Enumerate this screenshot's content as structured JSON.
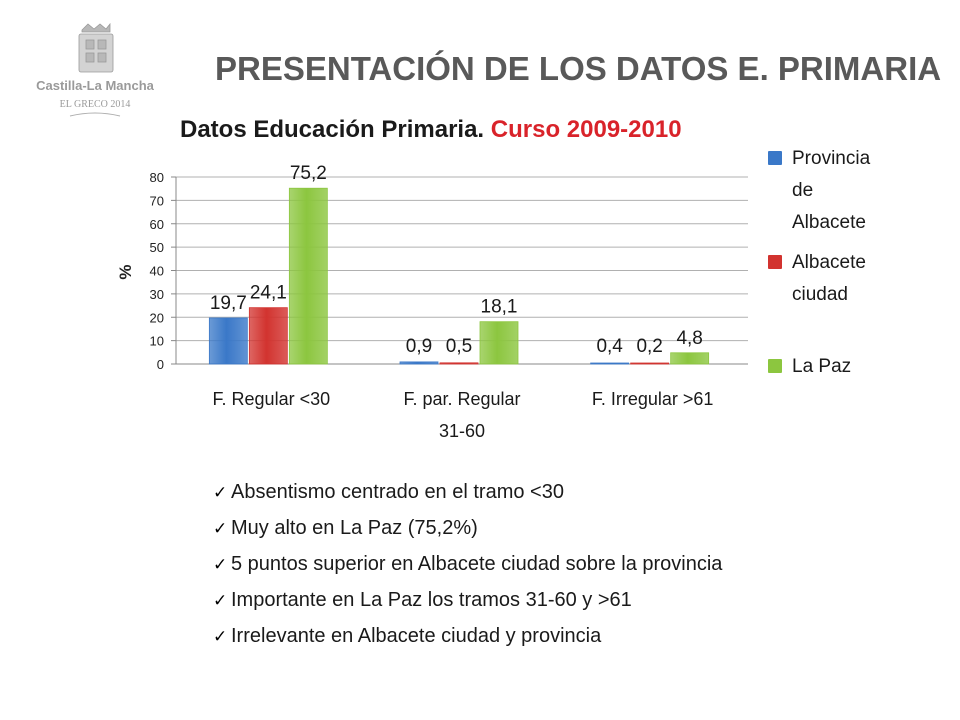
{
  "slide_title": "PRESENTACIÓN DE LOS DATOS E. PRIMARIA",
  "logo": {
    "line1": "Castilla-La Mancha",
    "line2": "EL GRECO 2014",
    "icon": "coat-of-arms"
  },
  "chart_data": {
    "type": "bar",
    "title": "Datos Educación Primaria.",
    "subtitle": "Curso 2009-2010",
    "xlabel": "",
    "ylabel": "%",
    "ylim": [
      0,
      80
    ],
    "yticks": [
      0,
      10,
      20,
      30,
      40,
      50,
      60,
      70,
      80
    ],
    "grid": true,
    "legend_position": "right",
    "categories": [
      [
        "F. Regular <30"
      ],
      [
        "F. par. Regular",
        "31-60"
      ],
      [
        "F. Irregular >61"
      ]
    ],
    "series": [
      {
        "name": "Provincia de Albacete",
        "legend_lines": [
          "Provincia",
          "de",
          "Albacete"
        ],
        "color": "#3a78c8",
        "values": [
          19.7,
          0.9,
          0.4
        ],
        "labels": [
          "19,7",
          "0,9",
          "0,4"
        ]
      },
      {
        "name": "Albacete ciudad",
        "legend_lines": [
          "Albacete",
          "ciudad"
        ],
        "color": "#d2332f",
        "values": [
          24.1,
          0.5,
          0.2
        ],
        "labels": [
          "24,1",
          "0,5",
          "0,2"
        ]
      },
      {
        "name": "La Paz",
        "legend_lines": [
          "La Paz"
        ],
        "color": "#8cc63f",
        "values": [
          75.2,
          18.1,
          4.8
        ],
        "labels": [
          "75,2",
          "18,1",
          "4,8"
        ]
      }
    ]
  },
  "bullets": [
    "Absentismo centrado en el tramo <30",
    "Muy alto en La Paz (75,2%)",
    "5 puntos superior en Albacete ciudad sobre la provincia",
    "Importante en La Paz los tramos 31-60 y >61",
    "Irrelevante en Albacete ciudad y provincia"
  ],
  "bullet_icon": "checkmark-icon"
}
